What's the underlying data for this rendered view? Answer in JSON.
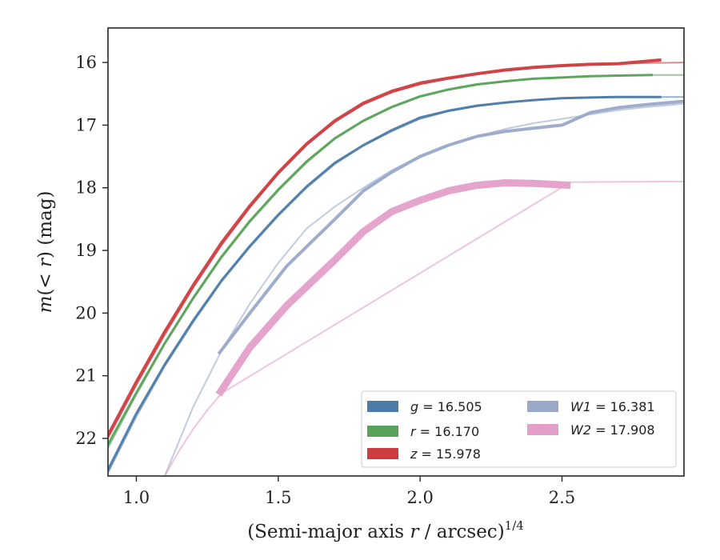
{
  "chart_data": {
    "type": "line",
    "xlabel_main": "(Semi-major axis ",
    "xlabel_var": "r",
    "xlabel_tail": " / arcsec)",
    "xlabel_sup": "1/4",
    "ylabel_var": "m",
    "ylabel_mid": "(< ",
    "ylabel_var2": "r",
    "ylabel_tail": ") (mag)",
    "xlim": [
      0.9,
      2.93
    ],
    "ylim": [
      22.6,
      15.45
    ],
    "x_ticks": [
      1.0,
      1.5,
      2.0,
      2.5
    ],
    "x_tick_labels": [
      "1.0",
      "1.5",
      "2.0",
      "2.5"
    ],
    "y_ticks": [
      16,
      17,
      18,
      19,
      20,
      21,
      22
    ],
    "y_tick_labels": [
      "16",
      "17",
      "18",
      "19",
      "20",
      "21",
      "22"
    ],
    "grid": false,
    "legend_position": "lower-right",
    "series": [
      {
        "band": "g",
        "value": "16.505",
        "color": "#4c7ba7",
        "model_x": [
          0.9,
          1.0,
          1.1,
          1.2,
          1.3,
          1.4,
          1.5,
          1.6,
          1.7,
          1.8,
          1.9,
          2.0,
          2.1,
          2.2,
          2.3,
          2.4,
          2.5,
          2.6,
          2.7,
          2.8,
          2.93
        ],
        "model_y": [
          22.55,
          21.65,
          20.85,
          20.15,
          19.5,
          18.95,
          18.45,
          18.0,
          17.62,
          17.33,
          17.1,
          16.9,
          16.78,
          16.7,
          16.64,
          16.6,
          16.57,
          16.56,
          16.55,
          16.55,
          16.55
        ],
        "data_x": [
          0.9,
          1.0,
          1.1,
          1.2,
          1.3,
          1.4,
          1.5,
          1.6,
          1.7,
          1.8,
          1.9,
          2.0,
          2.1,
          2.2,
          2.3,
          2.4,
          2.5,
          2.6,
          2.7,
          2.85
        ],
        "data_y": [
          22.5,
          21.6,
          20.82,
          20.12,
          19.48,
          18.93,
          18.43,
          17.98,
          17.6,
          17.32,
          17.08,
          16.88,
          16.77,
          16.69,
          16.64,
          16.6,
          16.57,
          16.56,
          16.55,
          16.55
        ]
      },
      {
        "band": "r",
        "value": "16.170",
        "color": "#5aa25a",
        "model_x": [
          0.9,
          1.0,
          1.1,
          1.2,
          1.3,
          1.4,
          1.5,
          1.6,
          1.7,
          1.8,
          1.9,
          2.0,
          2.1,
          2.2,
          2.3,
          2.4,
          2.5,
          2.6,
          2.7,
          2.8,
          2.93
        ],
        "model_y": [
          22.15,
          21.3,
          20.5,
          19.78,
          19.12,
          18.55,
          18.05,
          17.6,
          17.22,
          16.94,
          16.72,
          16.55,
          16.44,
          16.36,
          16.3,
          16.26,
          16.24,
          16.22,
          16.21,
          16.2,
          16.2
        ],
        "data_x": [
          0.9,
          1.0,
          1.1,
          1.2,
          1.3,
          1.4,
          1.5,
          1.6,
          1.7,
          1.8,
          1.9,
          2.0,
          2.1,
          2.2,
          2.3,
          2.4,
          2.5,
          2.6,
          2.7,
          2.82
        ],
        "data_y": [
          22.1,
          21.27,
          20.48,
          19.76,
          19.1,
          18.53,
          18.03,
          17.58,
          17.21,
          16.93,
          16.71,
          16.54,
          16.43,
          16.35,
          16.3,
          16.26,
          16.24,
          16.22,
          16.21,
          16.2
        ]
      },
      {
        "band": "z",
        "value": "15.978",
        "color": "#cc3d40",
        "model_x": [
          0.9,
          1.0,
          1.1,
          1.2,
          1.3,
          1.4,
          1.5,
          1.6,
          1.7,
          1.8,
          1.9,
          2.0,
          2.1,
          2.2,
          2.3,
          2.4,
          2.5,
          2.6,
          2.7,
          2.8,
          2.93
        ],
        "model_y": [
          22.0,
          21.15,
          20.35,
          19.6,
          18.92,
          18.32,
          17.78,
          17.32,
          16.95,
          16.67,
          16.48,
          16.35,
          16.26,
          16.19,
          16.13,
          16.09,
          16.05,
          16.03,
          16.02,
          16.01,
          16.0
        ],
        "data_x": [
          0.9,
          1.0,
          1.1,
          1.2,
          1.3,
          1.4,
          1.5,
          1.6,
          1.7,
          1.8,
          1.9,
          2.0,
          2.1,
          2.2,
          2.3,
          2.4,
          2.5,
          2.6,
          2.7,
          2.85
        ],
        "data_y": [
          21.95,
          21.1,
          20.3,
          19.56,
          18.88,
          18.29,
          17.76,
          17.3,
          16.93,
          16.65,
          16.46,
          16.33,
          16.25,
          16.18,
          16.12,
          16.08,
          16.05,
          16.03,
          16.02,
          15.96
        ]
      },
      {
        "band": "W1",
        "value": "16.381",
        "color": "#9aa9c9",
        "model_x": [
          1.1,
          1.2,
          1.3,
          1.4,
          1.5,
          1.6,
          1.7,
          1.8,
          1.9,
          2.0,
          2.1,
          2.2,
          2.3,
          2.4,
          2.5,
          2.6,
          2.7,
          2.8,
          2.93
        ],
        "model_y": [
          22.6,
          21.5,
          20.6,
          19.85,
          19.2,
          18.65,
          18.3,
          18.0,
          17.72,
          17.5,
          17.32,
          17.18,
          17.06,
          16.97,
          16.9,
          16.83,
          16.76,
          16.71,
          16.66
        ],
        "data_x": [
          1.29,
          1.4,
          1.53,
          1.7,
          1.8,
          1.9,
          2.0,
          2.1,
          2.2,
          2.3,
          2.4,
          2.5,
          2.6,
          2.7,
          2.8,
          2.93
        ],
        "data_y": [
          20.65,
          20.0,
          19.25,
          18.5,
          18.05,
          17.75,
          17.5,
          17.32,
          17.18,
          17.1,
          17.05,
          17.0,
          16.8,
          16.72,
          16.67,
          16.62
        ]
      },
      {
        "band": "W2",
        "value": "17.908",
        "color": "#e39fc8",
        "model_x": [
          1.1,
          1.15,
          1.2,
          1.25,
          1.3,
          2.53,
          2.93
        ],
        "model_y": [
          22.6,
          22.2,
          21.85,
          21.55,
          21.28,
          17.91,
          17.9
        ],
        "data_x": [
          1.29,
          1.4,
          1.53,
          1.7,
          1.8,
          1.9,
          2.0,
          2.1,
          2.2,
          2.3,
          2.4,
          2.53
        ],
        "data_y": [
          21.3,
          20.55,
          19.88,
          19.15,
          18.7,
          18.38,
          18.2,
          18.05,
          17.96,
          17.92,
          17.93,
          17.96
        ]
      }
    ]
  }
}
